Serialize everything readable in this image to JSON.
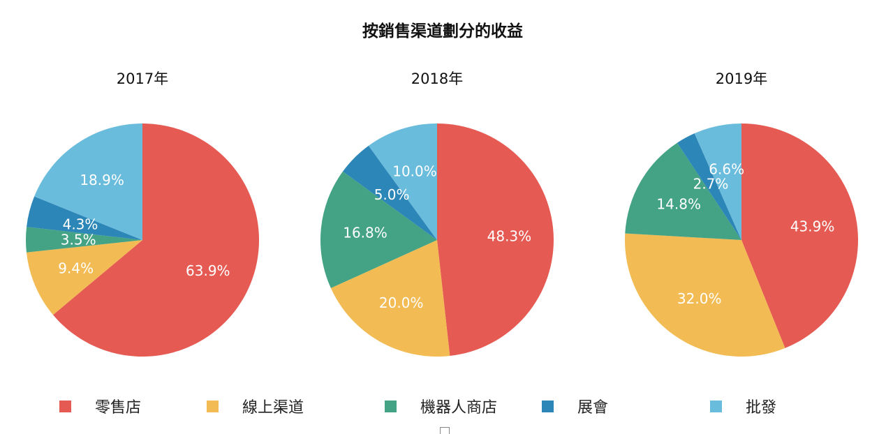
{
  "title": "按銷售渠道劃分的收益",
  "colors": [
    "#E55B53",
    "#F2BB53",
    "#44A384",
    "#2C86B7",
    "#6ABCDD"
  ],
  "chart_data": [
    {
      "type": "pie",
      "title": "2017年",
      "categories": [
        "零售店",
        "線上渠道",
        "機器人商店",
        "展會",
        "批發"
      ],
      "values": [
        63.9,
        9.4,
        3.5,
        4.3,
        18.9
      ],
      "labels": [
        "63.9%",
        "9.4%",
        "3.5%",
        "4.3%",
        "18.9%"
      ]
    },
    {
      "type": "pie",
      "title": "2018年",
      "categories": [
        "零售店",
        "線上渠道",
        "機器人商店",
        "展會",
        "批發"
      ],
      "values": [
        48.3,
        20.0,
        16.8,
        5.0,
        10.0
      ],
      "labels": [
        "48.3%",
        "20.0%",
        "16.8%",
        "5.0%",
        "10.0%"
      ]
    },
    {
      "type": "pie",
      "title": "2019年",
      "categories": [
        "零售店",
        "線上渠道",
        "機器人商店",
        "展會",
        "批發"
      ],
      "values": [
        43.9,
        32.0,
        14.8,
        2.7,
        6.6
      ],
      "labels": [
        "43.9%",
        "32.0%",
        "14.8%",
        "2.7%",
        "6.6%"
      ]
    }
  ],
  "legend": {
    "placement": "bottom",
    "items": [
      "零售店",
      "線上渠道",
      "機器人商店",
      "展會",
      "批發"
    ]
  }
}
